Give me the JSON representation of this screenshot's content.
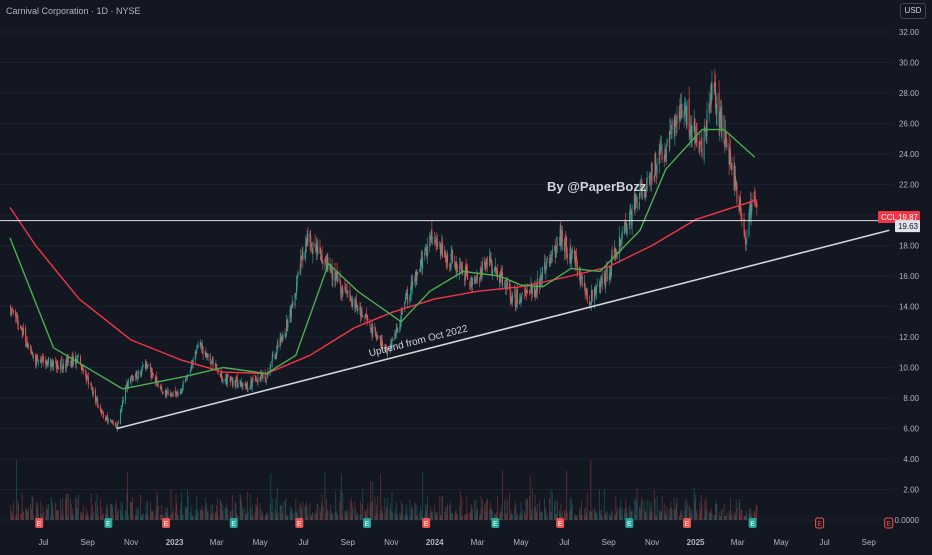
{
  "header": {
    "title": "Carnival Corporation · 1D · NYSE",
    "currency": "USD"
  },
  "watermark": "By @PaperBozz",
  "chart_data": {
    "type": "candlestick",
    "ticker": "CCL",
    "last_price": 19.87,
    "level_line": 19.63,
    "price_axis_labels": [
      "32.00",
      "30.00",
      "28.00",
      "26.00",
      "24.00",
      "22.00",
      "20.00",
      "18.00",
      "16.00",
      "14.00",
      "12.00",
      "10.00",
      "8.00",
      "6.00",
      "4.00",
      "2.00",
      "0.0000"
    ],
    "time_axis_labels": [
      "Jul",
      "Sep",
      "Nov",
      "2023",
      "Mar",
      "May",
      "Jul",
      "Sep",
      "Nov",
      "2024",
      "Mar",
      "May",
      "Jul",
      "Sep",
      "Nov",
      "2025",
      "Mar",
      "May",
      "Jul",
      "Sep"
    ],
    "ylim": [
      -0.5,
      33
    ],
    "close_path": [
      [
        "2022-05-15",
        14.0
      ],
      [
        "2022-06-20",
        10.5
      ],
      [
        "2022-07-20",
        10.2
      ],
      [
        "2022-08-20",
        10.5
      ],
      [
        "2022-09-20",
        7.0
      ],
      [
        "2022-10-12",
        6.1
      ],
      [
        "2022-10-25",
        8.8
      ],
      [
        "2022-11-20",
        10.2
      ],
      [
        "2022-12-20",
        8.2
      ],
      [
        "2023-01-10",
        8.5
      ],
      [
        "2023-02-05",
        11.5
      ],
      [
        "2023-03-10",
        9.3
      ],
      [
        "2023-04-10",
        8.8
      ],
      [
        "2023-05-10",
        9.5
      ],
      [
        "2023-06-10",
        13.0
      ],
      [
        "2023-07-05",
        18.5
      ],
      [
        "2023-07-25",
        17.5
      ],
      [
        "2023-08-20",
        15.5
      ],
      [
        "2023-09-20",
        13.5
      ],
      [
        "2023-10-28",
        11.0
      ],
      [
        "2023-12-01",
        15.5
      ],
      [
        "2023-12-28",
        18.5
      ],
      [
        "2024-01-25",
        17.0
      ],
      [
        "2024-02-25",
        15.5
      ],
      [
        "2024-03-15",
        17.2
      ],
      [
        "2024-04-20",
        14.5
      ],
      [
        "2024-05-20",
        15.0
      ],
      [
        "2024-06-25",
        18.5
      ],
      [
        "2024-07-15",
        17.0
      ],
      [
        "2024-08-05",
        14.5
      ],
      [
        "2024-08-30",
        16.0
      ],
      [
        "2024-09-20",
        18.5
      ],
      [
        "2024-10-05",
        20.5
      ],
      [
        "2024-11-20",
        24.5
      ],
      [
        "2024-12-15",
        27.0
      ],
      [
        "2025-01-10",
        24.5
      ],
      [
        "2025-01-25",
        28.0
      ],
      [
        "2025-02-15",
        24.5
      ],
      [
        "2025-03-05",
        20.0
      ],
      [
        "2025-03-12",
        18.5
      ],
      [
        "2025-03-22",
        21.5
      ],
      [
        "2025-03-28",
        19.87
      ]
    ],
    "ma_50_path": [
      [
        "2022-05-15",
        18.5
      ],
      [
        "2022-07-15",
        11.3
      ],
      [
        "2022-10-20",
        8.6
      ],
      [
        "2023-01-15",
        9.4
      ],
      [
        "2023-03-10",
        10.0
      ],
      [
        "2023-05-10",
        9.6
      ],
      [
        "2023-06-20",
        10.8
      ],
      [
        "2023-08-05",
        16.8
      ],
      [
        "2023-09-15",
        15.0
      ],
      [
        "2023-11-15",
        13.0
      ],
      [
        "2023-12-25",
        15.0
      ],
      [
        "2024-02-10",
        16.3
      ],
      [
        "2024-04-01",
        16.0
      ],
      [
        "2024-05-01",
        15.4
      ],
      [
        "2024-06-01",
        15.3
      ],
      [
        "2024-07-10",
        16.5
      ],
      [
        "2024-08-20",
        16.3
      ],
      [
        "2024-10-15",
        19.0
      ],
      [
        "2024-11-20",
        23.0
      ],
      [
        "2025-01-10",
        25.6
      ],
      [
        "2025-02-10",
        25.6
      ],
      [
        "2025-03-25",
        23.8
      ]
    ],
    "ma_200_path": [
      [
        "2022-05-15",
        20.5
      ],
      [
        "2022-06-20",
        18.0
      ],
      [
        "2022-08-20",
        14.5
      ],
      [
        "2022-11-01",
        11.8
      ],
      [
        "2023-01-10",
        10.5
      ],
      [
        "2023-03-10",
        9.7
      ],
      [
        "2023-05-10",
        9.6
      ],
      [
        "2023-07-10",
        10.8
      ],
      [
        "2023-09-10",
        12.6
      ],
      [
        "2023-11-01",
        13.6
      ],
      [
        "2024-01-01",
        14.5
      ],
      [
        "2024-03-01",
        15.0
      ],
      [
        "2024-05-01",
        15.3
      ],
      [
        "2024-07-01",
        15.9
      ],
      [
        "2024-09-01",
        16.6
      ],
      [
        "2024-11-01",
        18.0
      ],
      [
        "2025-01-01",
        19.7
      ],
      [
        "2025-03-28",
        21.0
      ]
    ],
    "trendline": {
      "label": "Uptrend from Oct 2022",
      "start": [
        "2022-10-12",
        6.0
      ],
      "end": [
        "2025-09-30",
        19.0
      ]
    },
    "earnings_markers": [
      "E",
      "E",
      "E",
      "E",
      "E",
      "E",
      "E",
      "E",
      "E",
      "E",
      "E",
      "E",
      "E",
      "E",
      "E"
    ]
  },
  "colors": {
    "background": "#131722",
    "up": "#26a69a",
    "down": "#ef5350",
    "ma_50": "#4caf50",
    "ma_200": "#f23645",
    "trendline": "#d1d4dc",
    "level_line": "#e0e3eb",
    "price_tag": "#f23645"
  }
}
